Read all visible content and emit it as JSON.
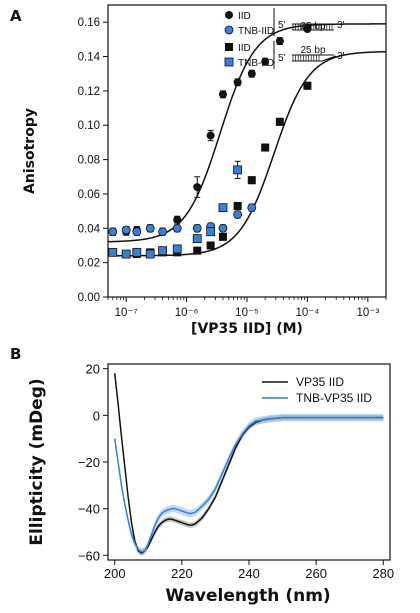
{
  "chart_data": [
    {
      "panel": "A",
      "type": "scatter",
      "xscale": "log",
      "xlabel": "[VP35 IID] (M)",
      "ylabel": "Anisotropy",
      "xlim": [
        5e-08,
        0.002
      ],
      "ylim": [
        0.0,
        0.17
      ],
      "xticks": [
        "10⁻⁷",
        "10⁻⁶",
        "10⁻⁵",
        "10⁻⁴",
        "10⁻³"
      ],
      "yticks": [
        "0.00",
        "0.02",
        "0.04",
        "0.06",
        "0.08",
        "0.10",
        "0.12",
        "0.14",
        "0.16"
      ],
      "legend_position": "top-right",
      "legend_groups": [
        {
          "labels": [
            "IID",
            "TNB-IID"
          ],
          "schematic": {
            "left": "5'",
            "right": "3'",
            "length": "25 bp",
            "type": "blunt"
          }
        },
        {
          "labels": [
            "IID",
            "TNB-IID"
          ],
          "schematic": {
            "left": "5'",
            "right": "3'",
            "length": "25 bp",
            "type": "overhang"
          }
        }
      ],
      "series": [
        {
          "name": "IID",
          "group": 1,
          "marker": "circle",
          "color": "#111111",
          "x": [
            6e-08,
            1e-07,
            1.5e-07,
            2.5e-07,
            4e-07,
            7e-07,
            1.5e-06,
            2.5e-06,
            4e-06,
            7e-06,
            1.2e-05,
            2e-05,
            3.5e-05,
            0.0001
          ],
          "y": [
            0.038,
            0.038,
            0.039,
            0.04,
            0.038,
            0.045,
            0.064,
            0.094,
            0.118,
            0.125,
            0.13,
            0.137,
            0.149,
            0.156
          ],
          "err": [
            0.002,
            0.002,
            0.002,
            0.002,
            0.002,
            0.002,
            0.006,
            0.003,
            0.002,
            0.002,
            0.002,
            0.002,
            0.002,
            0.001
          ]
        },
        {
          "name": "TNB-IID",
          "group": 1,
          "marker": "circle",
          "color": "#3a7fd5",
          "x": [
            6e-08,
            1e-07,
            1.5e-07,
            2.5e-07,
            4e-07,
            7e-07,
            1.5e-06,
            2.5e-06,
            4e-06,
            7e-06,
            1.2e-05
          ],
          "y": [
            0.038,
            0.039,
            0.038,
            0.04,
            0.038,
            0.04,
            0.04,
            0.041,
            0.04,
            0.048,
            0.052
          ],
          "err": [
            0.002,
            0.002,
            0.002,
            0.002,
            0.002,
            0.002,
            0.002,
            0.002,
            0.002,
            0.002,
            0.002
          ]
        },
        {
          "name": "IID",
          "group": 2,
          "marker": "square",
          "color": "#111111",
          "x": [
            6e-08,
            1e-07,
            1.5e-07,
            2.5e-07,
            4e-07,
            7e-07,
            1.5e-06,
            2.5e-06,
            4e-06,
            7e-06,
            1.2e-05,
            2e-05,
            3.5e-05,
            0.0001
          ],
          "y": [
            0.026,
            0.025,
            0.025,
            0.026,
            0.026,
            0.026,
            0.027,
            0.03,
            0.035,
            0.053,
            0.068,
            0.087,
            0.102,
            0.123
          ],
          "err": [
            0.001,
            0.001,
            0.001,
            0.001,
            0.001,
            0.001,
            0.001,
            0.001,
            0.001,
            0.002,
            0.002,
            0.002,
            0.002,
            0.002
          ]
        },
        {
          "name": "TNB-IID",
          "group": 2,
          "marker": "square",
          "color": "#3a7fd5",
          "x": [
            6e-08,
            1e-07,
            1.5e-07,
            2.5e-07,
            4e-07,
            7e-07,
            1.5e-06,
            2.5e-06,
            4e-06,
            7e-06
          ],
          "y": [
            0.026,
            0.025,
            0.026,
            0.025,
            0.027,
            0.028,
            0.034,
            0.038,
            0.052,
            0.074
          ],
          "err": [
            0.001,
            0.001,
            0.001,
            0.001,
            0.001,
            0.001,
            0.002,
            0.002,
            0.002,
            0.005
          ]
        }
      ],
      "fits": [
        {
          "color": "#111111",
          "y0": 0.032,
          "ymax": 0.159,
          "kd": 3.6e-06,
          "n": 1.5
        },
        {
          "color": "#111111",
          "y0": 0.024,
          "ymax": 0.143,
          "kd": 2.8e-05,
          "n": 1.5
        }
      ]
    },
    {
      "panel": "B",
      "type": "line",
      "xlabel": "Wavelength (nm)",
      "ylabel": "Ellipticity (mDeg)",
      "xlim": [
        198,
        282
      ],
      "ylim": [
        -62,
        22
      ],
      "xticks": [
        "200",
        "220",
        "240",
        "260",
        "280"
      ],
      "yticks": [
        "20",
        "0",
        "−20",
        "−40",
        "−60"
      ],
      "legend_position": "top-right",
      "series": [
        {
          "name": "VP35 IID",
          "color": "#111111",
          "x": [
            200,
            201,
            202,
            203,
            204,
            205,
            206,
            207,
            208,
            209,
            210,
            211,
            212,
            213,
            214,
            215,
            216,
            217,
            218,
            219,
            220,
            221,
            222,
            223,
            224,
            226,
            228,
            230,
            232,
            234,
            236,
            238,
            240,
            242,
            244,
            246,
            250,
            255,
            260,
            265,
            270,
            275,
            280
          ],
          "y": [
            18,
            5,
            -9,
            -22,
            -35,
            -46,
            -54,
            -58,
            -59,
            -58,
            -56,
            -53,
            -50,
            -47.5,
            -46,
            -45,
            -44.5,
            -44.5,
            -45,
            -45.5,
            -46,
            -46.5,
            -47,
            -47,
            -46.5,
            -44,
            -40,
            -35,
            -28,
            -21,
            -14,
            -8.5,
            -5,
            -3,
            -2,
            -1.5,
            -1,
            -1,
            -1,
            -1,
            -1,
            -1,
            -1
          ]
        },
        {
          "name": "TNB-VP35 IID",
          "color": "#3a7fd5",
          "x": [
            200,
            201,
            202,
            203,
            204,
            205,
            206,
            207,
            208,
            209,
            210,
            211,
            212,
            213,
            214,
            215,
            216,
            217,
            218,
            219,
            220,
            221,
            222,
            223,
            224,
            226,
            228,
            230,
            232,
            234,
            236,
            238,
            240,
            242,
            244,
            246,
            250,
            255,
            260,
            265,
            270,
            275,
            280
          ],
          "y": [
            -10,
            -20,
            -30,
            -38,
            -45,
            -51,
            -55,
            -57.5,
            -58.5,
            -58,
            -55,
            -51,
            -47,
            -44,
            -42,
            -41,
            -40.5,
            -40,
            -40,
            -40.5,
            -41,
            -41.5,
            -42,
            -42,
            -41.5,
            -39,
            -36,
            -31.5,
            -25,
            -18.5,
            -12.5,
            -8,
            -4.5,
            -2.5,
            -2,
            -1.5,
            -1,
            -1,
            -1,
            -1,
            -1,
            -1,
            -1
          ]
        }
      ]
    }
  ],
  "panelA": {
    "label": "A",
    "legend1": {
      "iid": "IID",
      "tnb": "TNB-IID",
      "five": "5'",
      "three": "3'",
      "bp": "25 bp"
    },
    "legend2": {
      "iid": "IID",
      "tnb": "TNB-IID",
      "five": "5'",
      "three": "3'",
      "bp": "25 bp"
    }
  },
  "panelB": {
    "label": "B",
    "legend": {
      "vp35": "VP35 IID",
      "tnb": "TNB-VP35 IID"
    }
  }
}
